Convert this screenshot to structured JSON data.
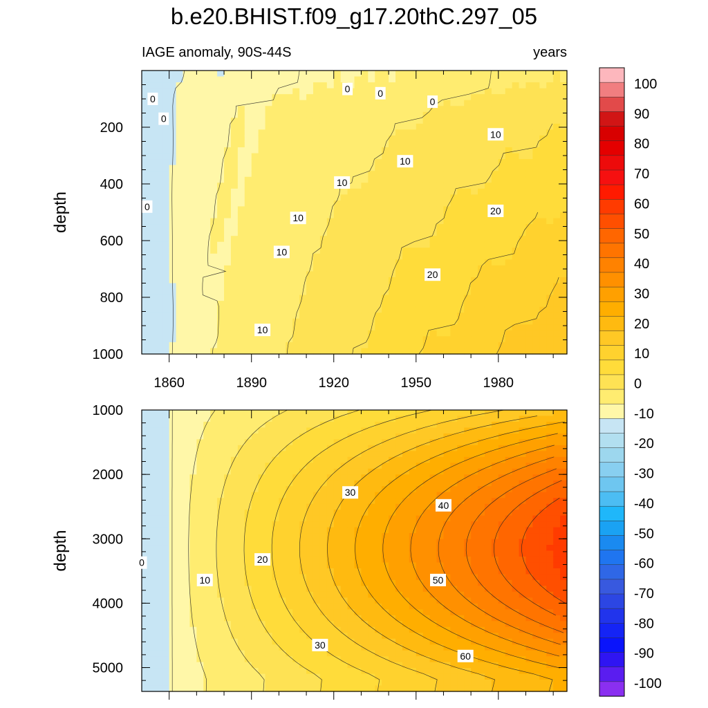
{
  "title": "b.e20.BHIST.f09_g17.20thC.297_05",
  "chart_data": {
    "type": "heatmap",
    "subtitle_left": "IAGE anomaly, 90S-44S",
    "subtitle_right": "years",
    "x_ticks": [
      "1860",
      "1890",
      "1920",
      "1950",
      "1980"
    ],
    "x_range": [
      1850,
      2005
    ],
    "panels": [
      {
        "id": "upper",
        "ylabel": "depth",
        "ylim": [
          0,
          1000
        ],
        "y_ticks": [
          "200",
          "400",
          "600",
          "800",
          "1000"
        ],
        "contour_labels": [
          {
            "text": "0",
            "x": 1854,
            "y": 100
          },
          {
            "text": "0",
            "x": 1858,
            "y": 170
          },
          {
            "text": "0",
            "x": 1852,
            "y": 480
          },
          {
            "text": "0",
            "x": 1925,
            "y": 65
          },
          {
            "text": "0",
            "x": 1937,
            "y": 80
          },
          {
            "text": "0",
            "x": 1956,
            "y": 110
          },
          {
            "text": "10",
            "x": 1979,
            "y": 225
          },
          {
            "text": "10",
            "x": 1946,
            "y": 320
          },
          {
            "text": "10",
            "x": 1923,
            "y": 395
          },
          {
            "text": "10",
            "x": 1907,
            "y": 520
          },
          {
            "text": "10",
            "x": 1901,
            "y": 640
          },
          {
            "text": "10",
            "x": 1894,
            "y": 915
          },
          {
            "text": "20",
            "x": 1979,
            "y": 495
          },
          {
            "text": "20",
            "x": 1956,
            "y": 720
          }
        ]
      },
      {
        "id": "lower",
        "ylabel": "depth",
        "ylim": [
          1000,
          5370
        ],
        "y_ticks": [
          "1000",
          "2000",
          "3000",
          "4000",
          "5000"
        ],
        "contour_labels": [
          {
            "text": "0",
            "x": 1850,
            "y": 3370
          },
          {
            "text": "10",
            "x": 1873,
            "y": 3640
          },
          {
            "text": "20",
            "x": 1894,
            "y": 3320
          },
          {
            "text": "30",
            "x": 1926,
            "y": 2280
          },
          {
            "text": "30",
            "x": 1915,
            "y": 4650
          },
          {
            "text": "40",
            "x": 1960,
            "y": 2480
          },
          {
            "text": "50",
            "x": 1958,
            "y": 3640
          },
          {
            "text": "60",
            "x": 1968,
            "y": 4820
          }
        ]
      }
    ],
    "colorbar": {
      "labels": [
        "100",
        "90",
        "80",
        "70",
        "60",
        "50",
        "40",
        "30",
        "20",
        "10",
        "0",
        "-10",
        "-20",
        "-30",
        "-40",
        "-50",
        "-60",
        "-70",
        "-80",
        "-90",
        "-100"
      ],
      "colors": [
        "#fdb7bd",
        "#f17e80",
        "#e24a4a",
        "#d11515",
        "#d80000",
        "#e40000",
        "#ed0b0b",
        "#f61010",
        "#ff1a00",
        "#ff3b00",
        "#ff4f00",
        "#ff6600",
        "#ff7400",
        "#ff8200",
        "#ff9000",
        "#ffa000",
        "#ffae00",
        "#ffba10",
        "#ffc825",
        "#ffd22e",
        "#ffdc3a",
        "#fee254",
        "#ffec70",
        "#fff7a8",
        "#c7e5f4",
        "#b2dff0",
        "#9dd7ee",
        "#88cff0",
        "#6ec6f0",
        "#4cbdf3",
        "#1fb7fa",
        "#1aa2f3",
        "#1a8af0",
        "#1f75f0",
        "#2f67e6",
        "#3859df",
        "#2c46e3",
        "#2134ec",
        "#1524f5",
        "#0a14fb",
        "#2f15f2",
        "#5a1df0",
        "#8a2ff0"
      ]
    }
  }
}
